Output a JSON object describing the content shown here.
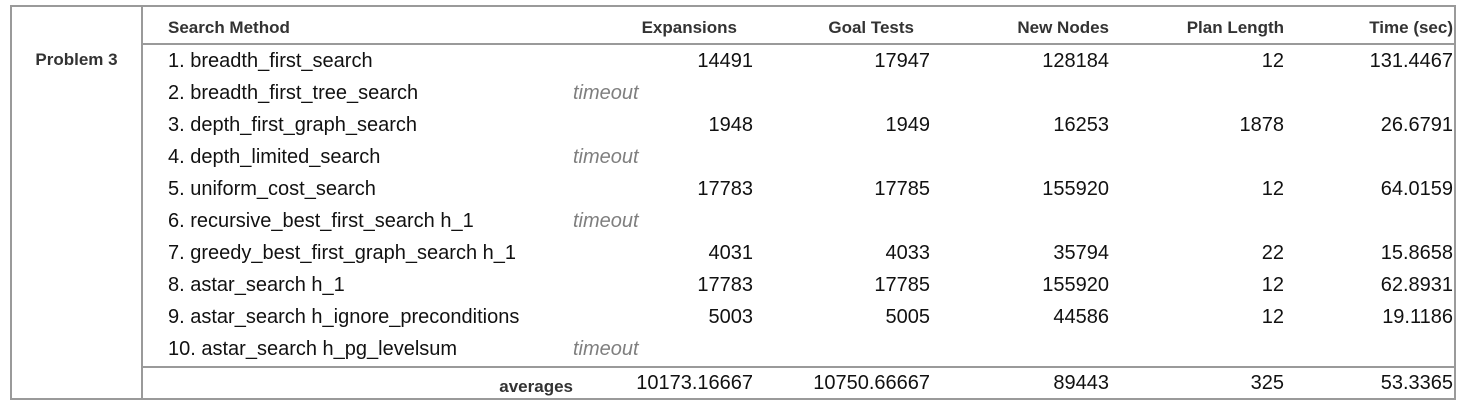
{
  "problem_label": "Problem 3",
  "headers": {
    "method": "Search Method",
    "expansions": "Expansions",
    "goal_tests": "Goal Tests",
    "new_nodes": "New Nodes",
    "plan_length": "Plan Length",
    "time": "Time (sec)"
  },
  "rows": [
    {
      "method": "1. breadth_first_search",
      "timeout": "",
      "expansions": "14491",
      "goal_tests": "17947",
      "new_nodes": "128184",
      "plan_length": "12",
      "time": "131.4467"
    },
    {
      "method": "2. breadth_first_tree_search",
      "timeout": "timeout",
      "expansions": "",
      "goal_tests": "",
      "new_nodes": "",
      "plan_length": "",
      "time": ""
    },
    {
      "method": "3. depth_first_graph_search",
      "timeout": "",
      "expansions": "1948",
      "goal_tests": "1949",
      "new_nodes": "16253",
      "plan_length": "1878",
      "time": "26.6791"
    },
    {
      "method": "4. depth_limited_search",
      "timeout": "timeout",
      "expansions": "",
      "goal_tests": "",
      "new_nodes": "",
      "plan_length": "",
      "time": ""
    },
    {
      "method": "5. uniform_cost_search",
      "timeout": "",
      "expansions": "17783",
      "goal_tests": "17785",
      "new_nodes": "155920",
      "plan_length": "12",
      "time": "64.0159"
    },
    {
      "method": "6. recursive_best_first_search h_1",
      "timeout": "timeout",
      "expansions": "",
      "goal_tests": "",
      "new_nodes": "",
      "plan_length": "",
      "time": ""
    },
    {
      "method": "7. greedy_best_first_graph_search h_1",
      "timeout": "",
      "expansions": "4031",
      "goal_tests": "4033",
      "new_nodes": "35794",
      "plan_length": "22",
      "time": "15.8658"
    },
    {
      "method": "8. astar_search h_1",
      "timeout": "",
      "expansions": "17783",
      "goal_tests": "17785",
      "new_nodes": "155920",
      "plan_length": "12",
      "time": "62.8931"
    },
    {
      "method": "9. astar_search h_ignore_preconditions",
      "timeout": "",
      "expansions": "5003",
      "goal_tests": "5005",
      "new_nodes": "44586",
      "plan_length": "12",
      "time": "19.1186"
    },
    {
      "method": "10. astar_search h_pg_levelsum",
      "timeout": "timeout",
      "expansions": "",
      "goal_tests": "",
      "new_nodes": "",
      "plan_length": "",
      "time": ""
    }
  ],
  "averages": {
    "label": "averages",
    "expansions": "10173.16667",
    "goal_tests": "10750.66667",
    "new_nodes": "89443",
    "plan_length": "325",
    "time": "53.3365"
  }
}
